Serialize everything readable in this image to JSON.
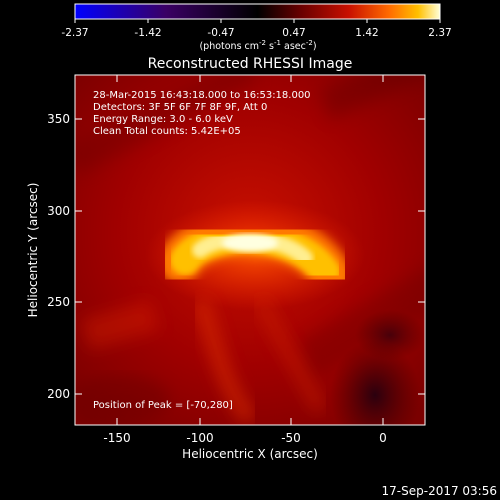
{
  "colorbar": {
    "ticks": [
      "-2.37",
      "-1.42",
      "-0.47",
      "0.47",
      "1.42",
      "2.37"
    ],
    "units_prefix": "(photons cm",
    "units_exp1": "-2",
    "units_mid": " s",
    "units_exp2": "-1",
    "units_mid2": " asec",
    "units_exp3": "-2",
    "units_suffix": ")",
    "colors": [
      "#0000ff",
      "#3a0064",
      "#000000",
      "#6a0000",
      "#c81000",
      "#ff6a00",
      "#ffc000",
      "#ffffd8"
    ]
  },
  "image": {
    "title": "Reconstructed RHESSI Image",
    "info": [
      "28-Mar-2015 16:43:18.000 to 16:53:18.000",
      "Detectors: 3F 5F 6F 7F 8F 9F, Att 0",
      "Energy Range: 3.0 - 6.0 keV",
      "Clean    Total counts: 5.42E+05"
    ],
    "peak_label": "Position of Peak = [-70,280]",
    "peak": {
      "x": -70,
      "y": 280
    },
    "xlabel": "Heliocentric X (arcsec)",
    "ylabel": "Heliocentric Y (arcsec)",
    "x_ticks": [
      "-150",
      "-100",
      "-50",
      "0"
    ],
    "y_ticks": [
      "200",
      "250",
      "300",
      "350"
    ],
    "xlim": [
      -167,
      23
    ],
    "ylim": [
      183,
      373
    ]
  },
  "timestamp": "17-Sep-2017 03:56"
}
